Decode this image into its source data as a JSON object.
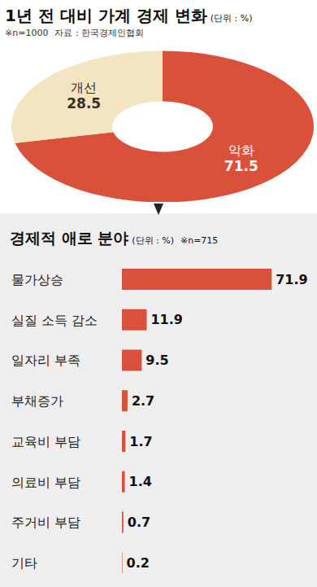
{
  "chart_data": [
    {
      "type": "pie",
      "title": "1년 전 대비 가계 경제 변화",
      "subtitle": "(단위 : %)",
      "annotations": [
        "※n=1000",
        "자료 : 한국경제인협회"
      ],
      "categories": [
        "악화",
        "개선"
      ],
      "values": [
        71.5,
        28.5
      ],
      "colors": [
        "#d9513a",
        "#f3e4c2"
      ],
      "data_labels": true
    },
    {
      "type": "bar",
      "orientation": "horizontal",
      "title": "경제적 애로 분야",
      "subtitle": "(단위 : %)",
      "annotations": [
        "※n=715"
      ],
      "categories": [
        "물가상승",
        "실질 소득 감소",
        "일자리 부족",
        "부채증가",
        "교육비 부담",
        "의료비 부담",
        "주거비 부담",
        "기타"
      ],
      "values": [
        71.9,
        11.9,
        9.5,
        2.7,
        1.7,
        1.4,
        0.7,
        0.2
      ],
      "color": "#d9513a",
      "xlim": [
        0,
        80
      ],
      "data_labels": true,
      "tick_labels": "y"
    }
  ]
}
